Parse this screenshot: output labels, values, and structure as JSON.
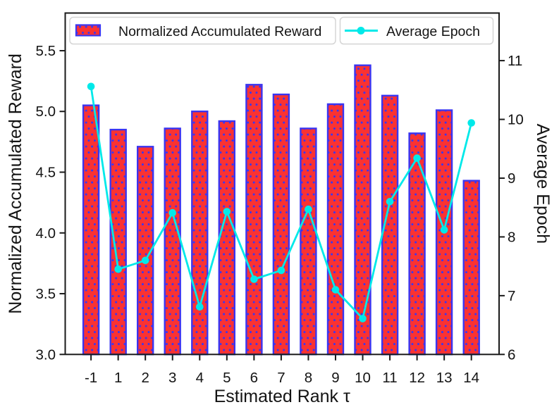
{
  "chart_data": {
    "type": "bar",
    "subtype": "dual-axis-bar-and-line",
    "categories": [
      "-1",
      "1",
      "2",
      "3",
      "4",
      "5",
      "6",
      "7",
      "8",
      "9",
      "10",
      "11",
      "12",
      "13",
      "14"
    ],
    "series": [
      {
        "name": "Normalized Accumulated Reward",
        "type": "bar",
        "axis": "left",
        "values": [
          5.05,
          4.85,
          4.71,
          4.86,
          5.0,
          4.92,
          5.22,
          5.14,
          4.86,
          5.06,
          5.38,
          5.13,
          4.82,
          5.01,
          4.43
        ]
      },
      {
        "name": "Average Epoch",
        "type": "line",
        "axis": "right",
        "values": [
          10.56,
          7.45,
          7.6,
          8.41,
          6.81,
          8.43,
          7.28,
          7.43,
          8.47,
          7.1,
          6.61,
          8.6,
          9.34,
          8.12,
          9.94
        ]
      }
    ],
    "xlabel": "Estimated Rank τ",
    "left_axis": {
      "label": "Normalized Accumulated Reward",
      "ticks": [
        3.0,
        3.5,
        4.0,
        4.5,
        5.0,
        5.5
      ],
      "tick_labels": [
        "3.0",
        "3.5",
        "4.0",
        "4.5",
        "5.0",
        "5.5"
      ],
      "lim": [
        3.0,
        5.81
      ]
    },
    "right_axis": {
      "label": "Average Epoch",
      "ticks": [
        6,
        7,
        8,
        9,
        10,
        11
      ],
      "tick_labels": [
        "6",
        "7",
        "8",
        "9",
        "10",
        "11"
      ],
      "lim": [
        6,
        11.81
      ]
    },
    "legend": {
      "position": "upper-left-row",
      "items": [
        "Normalized Accumulated Reward",
        "Average Epoch"
      ]
    },
    "grid": false,
    "colors": {
      "bar_fill": "#fa3232",
      "bar_edge": "#3a35f1",
      "bar_dot": "#3a35f1",
      "line": "#00e9e9",
      "spine": "#1a1a1a",
      "text": "#141414",
      "legend_border": "#d5d5d5",
      "background": "#ffffff"
    }
  }
}
